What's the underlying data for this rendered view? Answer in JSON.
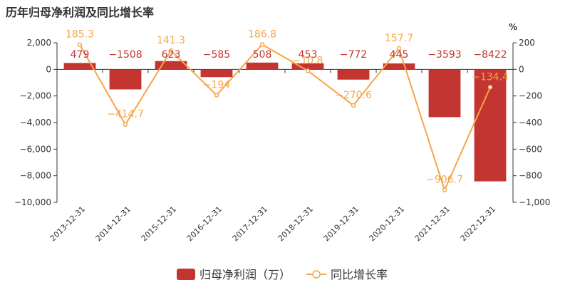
{
  "title": "历年归母净利润及同比增长率",
  "chart_data": {
    "type": "bar",
    "categories": [
      "2013-12-31",
      "2014-12-31",
      "2015-12-31",
      "2016-12-31",
      "2017-12-31",
      "2018-12-31",
      "2019-12-31",
      "2020-12-31",
      "2021-12-31",
      "2022-12-31"
    ],
    "series": [
      {
        "name": "归母净利润（万）",
        "type": "bar",
        "axis": "left",
        "color": "#c23531",
        "values": [
          479,
          -1508,
          623,
          -585,
          508,
          453,
          -772,
          445,
          -3593,
          -8422
        ],
        "labels": [
          "479",
          "−1508",
          "623",
          "−585",
          "508",
          "453",
          "−772",
          "445",
          "−3593",
          "−8422"
        ]
      },
      {
        "name": "同比增长率",
        "type": "line",
        "axis": "right",
        "color": "#f5a54a",
        "values": [
          185.3,
          -414.7,
          141.3,
          -194,
          186.8,
          -10.8,
          -270.6,
          157.7,
          -906.7,
          -134.4
        ],
        "labels": [
          "185.3",
          "−414.7",
          "141.3",
          "−194",
          "186.8",
          "−10.8",
          "−270.6",
          "157.7",
          "−906.7",
          "−134.4"
        ]
      }
    ],
    "y_left": {
      "ylim": [
        -10000,
        2000
      ],
      "ticks": [
        2000,
        0,
        -2000,
        -4000,
        -6000,
        -8000,
        -10000
      ],
      "tick_labels": [
        "2,000",
        "0",
        "−2,000",
        "−4,000",
        "−6,000",
        "−8,000",
        "−10,000"
      ]
    },
    "y_right": {
      "ylim": [
        -1000,
        200
      ],
      "unit": "%",
      "ticks": [
        200,
        0,
        -200,
        -400,
        -600,
        -800,
        -1000
      ],
      "tick_labels": [
        "200",
        "0",
        "−200",
        "−400",
        "−600",
        "−800",
        "−1,000"
      ]
    },
    "grid": false,
    "legend_position": "bottom-center"
  }
}
